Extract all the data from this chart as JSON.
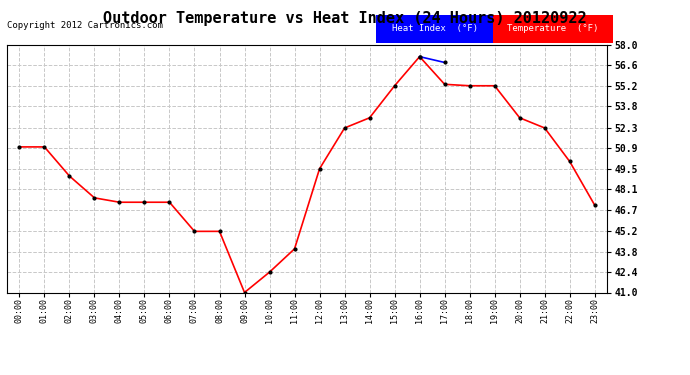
{
  "title": "Outdoor Temperature vs Heat Index (24 Hours) 20120922",
  "copyright": "Copyright 2012 Cartronics.com",
  "hours": [
    "00:00",
    "01:00",
    "02:00",
    "03:00",
    "04:00",
    "05:00",
    "06:00",
    "07:00",
    "08:00",
    "09:00",
    "10:00",
    "11:00",
    "12:00",
    "13:00",
    "14:00",
    "15:00",
    "16:00",
    "17:00",
    "18:00",
    "19:00",
    "20:00",
    "21:00",
    "22:00",
    "23:00"
  ],
  "temperature": [
    51.0,
    51.0,
    49.0,
    47.5,
    47.2,
    47.2,
    47.2,
    45.2,
    45.2,
    41.0,
    42.4,
    44.0,
    49.5,
    52.3,
    53.0,
    55.2,
    57.2,
    55.3,
    55.2,
    55.2,
    53.0,
    52.3,
    50.0,
    47.0
  ],
  "heat_index": [
    null,
    null,
    null,
    null,
    null,
    null,
    null,
    null,
    null,
    null,
    null,
    null,
    null,
    null,
    null,
    null,
    57.2,
    56.8,
    null,
    null,
    null,
    null,
    null,
    null
  ],
  "temp_color": "#ff0000",
  "heat_index_color": "#0000ff",
  "ylim": [
    41.0,
    58.0
  ],
  "yticks": [
    41.0,
    42.4,
    43.8,
    45.2,
    46.7,
    48.1,
    49.5,
    50.9,
    52.3,
    53.8,
    55.2,
    56.6,
    58.0
  ],
  "background_color": "#ffffff",
  "grid_color": "#c8c8c8",
  "title_fontsize": 11,
  "copyright_fontsize": 6.5,
  "legend_heat_label": "Heat Index  (°F)",
  "legend_temp_label": "Temperature  (°F)",
  "legend_heat_bg": "#0000ff",
  "legend_temp_bg": "#ff0000"
}
